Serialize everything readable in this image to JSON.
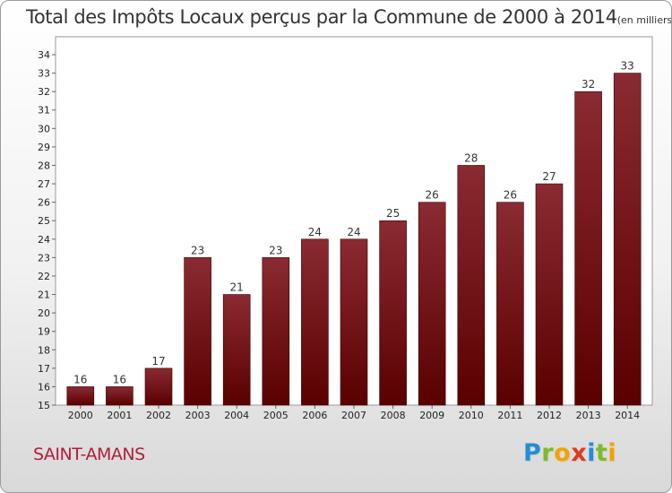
{
  "title": "Total des Impôts Locaux perçus par la Commune de 2000 à 2014",
  "unit": "(en milliers d'€)",
  "commune": "SAINT-AMANS",
  "logo": {
    "letters": [
      {
        "ch": "P",
        "color": "#1f8fd6"
      },
      {
        "ch": "r",
        "color": "#7dbb2a"
      },
      {
        "ch": "o",
        "color": "#f0a400"
      },
      {
        "ch": "x",
        "color": "#e03a1e"
      },
      {
        "ch": "i",
        "color": "#1f8fd6"
      },
      {
        "ch": "t",
        "color": "#7dbb2a"
      },
      {
        "ch": "i",
        "color": "#f0a400"
      }
    ]
  },
  "chart_data": {
    "type": "bar",
    "title": "Total des Impôts Locaux perçus par la Commune de 2000 à 2014",
    "categories": [
      "2000",
      "2001",
      "2002",
      "2003",
      "2004",
      "2005",
      "2006",
      "2007",
      "2008",
      "2009",
      "2010",
      "2011",
      "2012",
      "2013",
      "2014"
    ],
    "values": [
      16,
      16,
      17,
      23,
      21,
      23,
      24,
      24,
      25,
      26,
      28,
      26,
      27,
      32,
      33
    ],
    "ylim": [
      15,
      34
    ],
    "yticks": [
      15,
      16,
      17,
      18,
      19,
      20,
      21,
      22,
      23,
      24,
      25,
      26,
      27,
      28,
      29,
      30,
      31,
      32,
      33,
      34
    ],
    "grid": false,
    "bar_color_top": "#8a2a32",
    "bar_color_bottom": "#5a0000"
  }
}
